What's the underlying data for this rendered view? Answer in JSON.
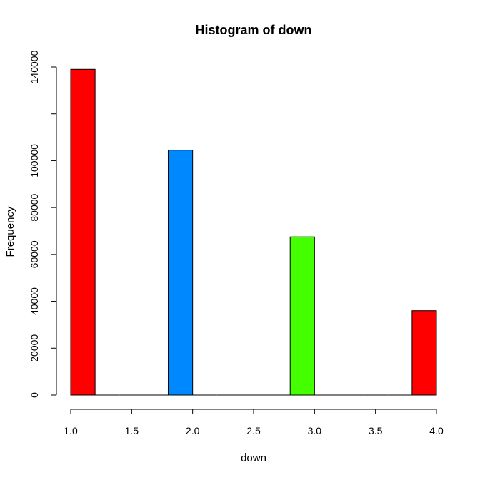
{
  "chart_data": {
    "type": "bar",
    "title": "Histogram of down",
    "xlabel": "down",
    "ylabel": "Frequency",
    "xlim": [
      1.0,
      4.0
    ],
    "ylim": [
      0,
      140000
    ],
    "x_ticks": [
      "1.0",
      "1.5",
      "2.0",
      "2.5",
      "3.0",
      "3.5",
      "4.0"
    ],
    "y_ticks": [
      "0",
      "20000",
      "40000",
      "60000",
      "80000",
      "100000",
      "120000",
      "140000"
    ],
    "bins": [
      {
        "start": 1.0,
        "end": 1.2,
        "count": 139000,
        "color": "#ff0000"
      },
      {
        "start": 1.2,
        "end": 1.4,
        "count": 0,
        "color": "#ff0000"
      },
      {
        "start": 1.4,
        "end": 1.6,
        "count": 0,
        "color": "#ff0000"
      },
      {
        "start": 1.6,
        "end": 1.8,
        "count": 0,
        "color": "#ff0000"
      },
      {
        "start": 1.8,
        "end": 2.0,
        "count": 104500,
        "color": "#0088ff"
      },
      {
        "start": 2.0,
        "end": 2.2,
        "count": 0,
        "color": "#ff0000"
      },
      {
        "start": 2.2,
        "end": 2.4,
        "count": 0,
        "color": "#ff0000"
      },
      {
        "start": 2.4,
        "end": 2.6,
        "count": 0,
        "color": "#ff0000"
      },
      {
        "start": 2.6,
        "end": 2.8,
        "count": 0,
        "color": "#ff0000"
      },
      {
        "start": 2.8,
        "end": 3.0,
        "count": 67500,
        "color": "#44ff00"
      },
      {
        "start": 3.0,
        "end": 3.2,
        "count": 0,
        "color": "#ff0000"
      },
      {
        "start": 3.2,
        "end": 3.4,
        "count": 0,
        "color": "#ff0000"
      },
      {
        "start": 3.4,
        "end": 3.6,
        "count": 0,
        "color": "#ff0000"
      },
      {
        "start": 3.6,
        "end": 3.8,
        "count": 0,
        "color": "#ff0000"
      },
      {
        "start": 3.8,
        "end": 4.0,
        "count": 36000,
        "color": "#ff0000"
      }
    ],
    "grid": false,
    "legend": "none"
  }
}
